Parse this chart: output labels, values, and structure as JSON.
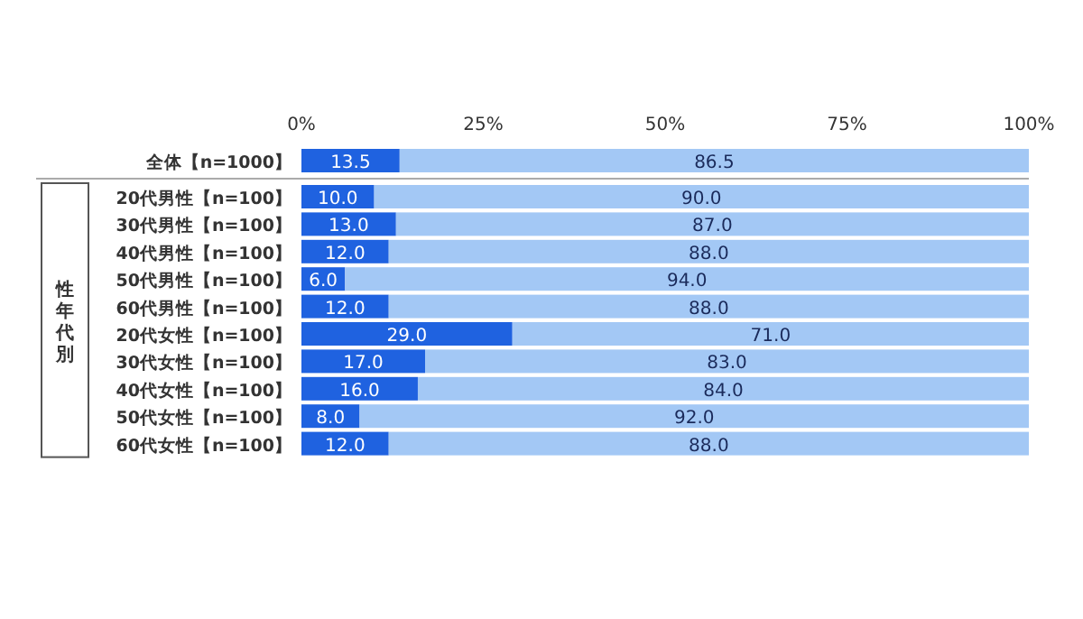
{
  "chart_data": {
    "type": "bar",
    "orientation": "horizontal",
    "stacked": true,
    "categories": [
      "全体【n=1000】",
      "20代男性【n=100】",
      "30代男性【n=100】",
      "40代男性【n=100】",
      "50代男性【n=100】",
      "60代男性【n=100】",
      "20代女性【n=100】",
      "30代女性【n=100】",
      "40代女性【n=100】",
      "50代女性【n=100】",
      "60代女性【n=100】"
    ],
    "series": [
      {
        "color": "#1f62e0",
        "values": [
          13.5,
          10,
          13,
          12,
          6,
          12,
          29,
          17,
          16,
          8,
          12
        ],
        "value_labels": [
          "13.5",
          "10.0",
          "13.0",
          "12.0",
          "6.0",
          "12.0",
          "29.0",
          "17.0",
          "16.0",
          "8.0",
          "12.0"
        ]
      },
      {
        "color": "#a3c8f5",
        "values": [
          86.5,
          90,
          87,
          88,
          94,
          88,
          71,
          83,
          84,
          92,
          88
        ],
        "value_labels": [
          "86.5",
          "90.0",
          "87.0",
          "88.0",
          "94.0",
          "88.0",
          "71.0",
          "83.0",
          "84.0",
          "92.0",
          "88.0"
        ]
      }
    ],
    "xlim": [
      0,
      100
    ],
    "xticks": [
      {
        "value": 0,
        "label": "0%"
      },
      {
        "value": 25,
        "label": "25%"
      },
      {
        "value": 50,
        "label": "50%"
      },
      {
        "value": 75,
        "label": "75%"
      },
      {
        "value": 100,
        "label": "100%"
      }
    ],
    "annotations": [
      "性年代別"
    ],
    "grid": false
  }
}
